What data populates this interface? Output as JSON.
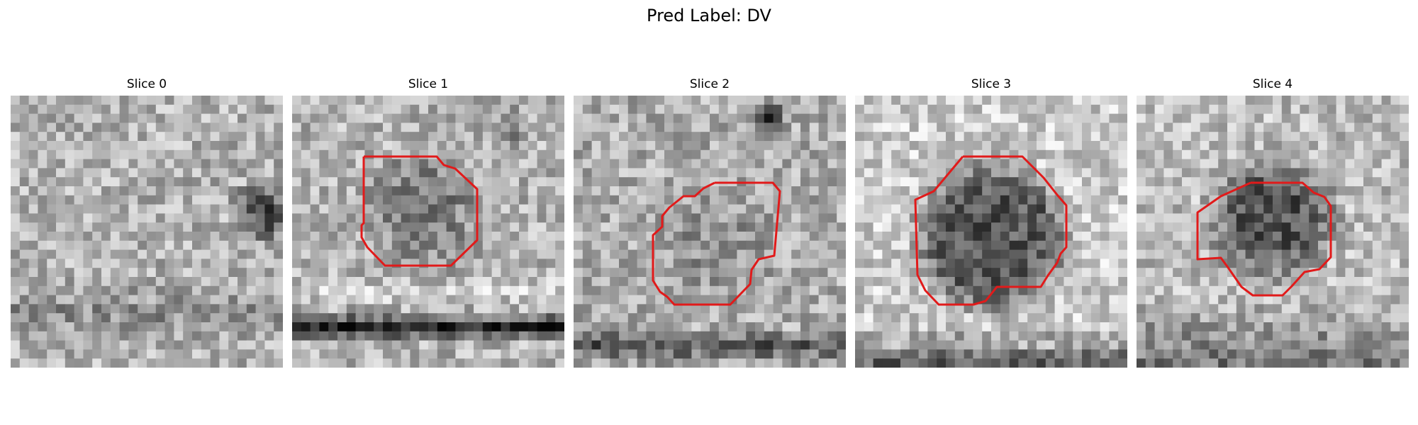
{
  "figure": {
    "title": "Pred Label: DV"
  },
  "slices": [
    {
      "title": "Slice 0",
      "has_contour": false,
      "contour_color": "#e11a1a"
    },
    {
      "title": "Slice 1",
      "has_contour": true,
      "contour_color": "#e11a1a"
    },
    {
      "title": "Slice 2",
      "has_contour": true,
      "contour_color": "#e11a1a"
    },
    {
      "title": "Slice 3",
      "has_contour": true,
      "contour_color": "#e11a1a"
    },
    {
      "title": "Slice 4",
      "has_contour": true,
      "contour_color": "#e11a1a"
    }
  ],
  "colors": {
    "colormap": "grayscale",
    "contour": "#e11a1a"
  }
}
